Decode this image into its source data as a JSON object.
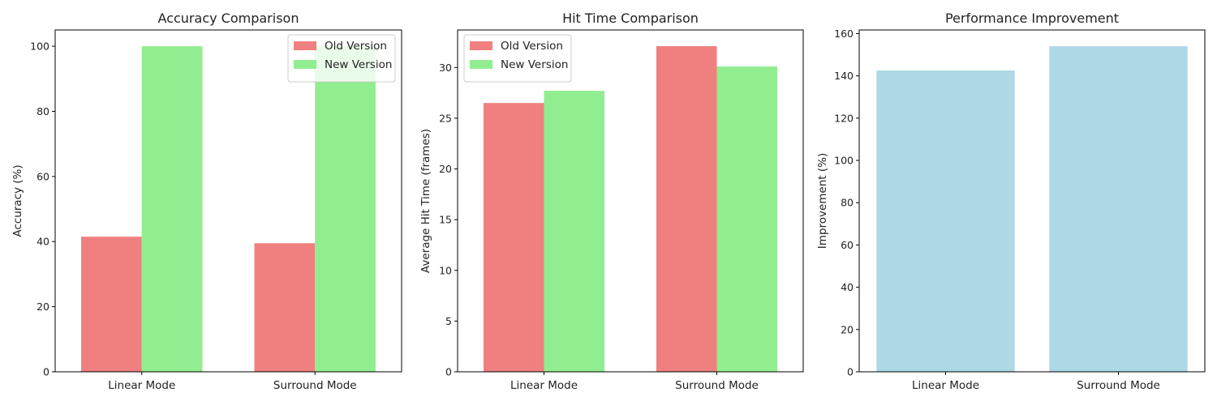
{
  "colors": {
    "old": "#f08080",
    "new": "#90ee90",
    "improvement": "#add8e6",
    "axis": "#000000",
    "legend_border": "#cccccc"
  },
  "chart_data": [
    {
      "type": "bar",
      "title": "Accuracy Comparison",
      "xlabel": "",
      "ylabel": "Accuracy (%)",
      "categories": [
        "Linear Mode",
        "Surround Mode"
      ],
      "series": [
        {
          "name": "Old Version",
          "values": [
            41.5,
            39.5
          ]
        },
        {
          "name": "New Version",
          "values": [
            100,
            100
          ]
        }
      ],
      "ylim": [
        0,
        105
      ],
      "yticks": [
        0,
        20,
        40,
        60,
        80,
        100
      ],
      "legend": "top-right",
      "grid": false
    },
    {
      "type": "bar",
      "title": "Hit Time Comparison",
      "xlabel": "",
      "ylabel": "Average Hit Time (frames)",
      "categories": [
        "Linear Mode",
        "Surround Mode"
      ],
      "series": [
        {
          "name": "Old Version",
          "values": [
            26.5,
            32.1
          ]
        },
        {
          "name": "New Version",
          "values": [
            27.7,
            30.1
          ]
        }
      ],
      "ylim": [
        0,
        33.7
      ],
      "yticks": [
        0,
        5,
        10,
        15,
        20,
        25,
        30
      ],
      "legend": "top-left",
      "grid": false
    },
    {
      "type": "bar",
      "title": "Performance Improvement",
      "xlabel": "",
      "ylabel": "Improvement (%)",
      "categories": [
        "Linear Mode",
        "Surround Mode"
      ],
      "series": [
        {
          "values": [
            142.5,
            154
          ]
        }
      ],
      "ylim": [
        0,
        161.7
      ],
      "yticks": [
        0,
        20,
        40,
        60,
        80,
        100,
        120,
        140,
        160
      ],
      "legend": "none",
      "grid": false
    }
  ]
}
